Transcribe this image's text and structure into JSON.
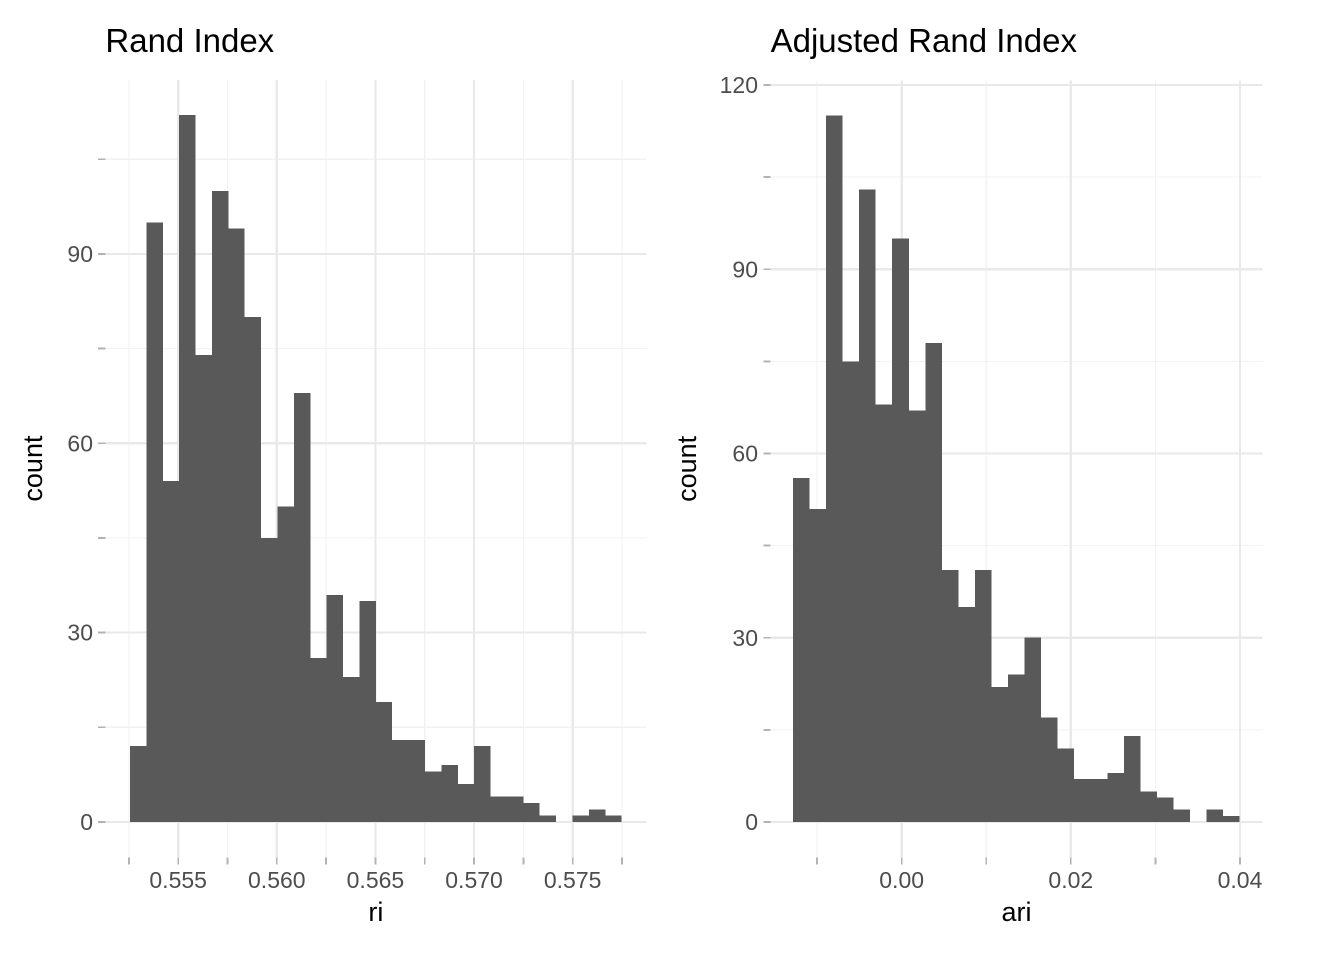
{
  "figure": {
    "background": "#ffffff",
    "bar_color": "#595959",
    "grid_major_color": "#e9e9e9",
    "grid_minor_color": "#f2f2f2",
    "tick_color": "#b3b3b3",
    "tick_label_color": "#4d4d4d",
    "text_color": "#000000"
  },
  "chart_data": [
    {
      "type": "bar",
      "subtype": "histogram",
      "title": "Rand Index",
      "xlabel": "ri",
      "ylabel": "count",
      "bin_start": 0.552556,
      "bin_width": 0.000831,
      "counts": [
        12,
        95,
        54,
        112,
        74,
        100,
        94,
        80,
        45,
        50,
        68,
        26,
        36,
        23,
        35,
        19,
        13,
        13,
        8,
        9,
        6,
        12,
        4,
        4,
        3,
        1,
        0,
        1,
        2,
        1
      ],
      "total_observations": 1000,
      "x_major_ticks": [
        0.555,
        0.56,
        0.565,
        0.57,
        0.575
      ],
      "x_major_labels": [
        "0.555",
        "0.560",
        "0.565",
        "0.570",
        "0.575"
      ],
      "x_minor_ticks": [
        0.5525,
        0.5575,
        0.5625,
        0.5675,
        0.5725,
        0.5775
      ],
      "y_major_ticks": [
        0,
        30,
        60,
        90
      ],
      "y_major_labels": [
        "0",
        "30",
        "60",
        "90"
      ],
      "y_minor_ticks": [
        15,
        45,
        75,
        105
      ],
      "xlim": [
        0.55131,
        0.578733
      ],
      "ylim": [
        -5.6,
        117.6
      ],
      "grid": true,
      "legend": false
    },
    {
      "type": "bar",
      "subtype": "histogram",
      "title": "Adjusted Rand Index",
      "xlabel": "ari",
      "ylabel": "count",
      "bin_start": -0.012852,
      "bin_width": 0.001956,
      "counts": [
        56,
        51,
        115,
        75,
        103,
        68,
        95,
        67,
        78,
        41,
        35,
        41,
        22,
        24,
        30,
        17,
        12,
        7,
        7,
        8,
        14,
        5,
        4,
        2,
        0,
        2,
        1
      ],
      "x_major_ticks": [
        0,
        0.02,
        0.04
      ],
      "x_major_labels": [
        "0.00",
        "0.02",
        "0.04"
      ],
      "x_minor_ticks": [
        -0.01,
        0.01,
        0.03
      ],
      "y_major_ticks": [
        0,
        30,
        60,
        90,
        120
      ],
      "y_major_labels": [
        "0",
        "30",
        "60",
        "90",
        "120"
      ],
      "y_minor_ticks": [
        15,
        45,
        75,
        105
      ],
      "xlim": [
        -0.015495,
        0.042651
      ],
      "ylim": [
        -5.75,
        120.75
      ],
      "grid": true,
      "legend": false
    }
  ]
}
